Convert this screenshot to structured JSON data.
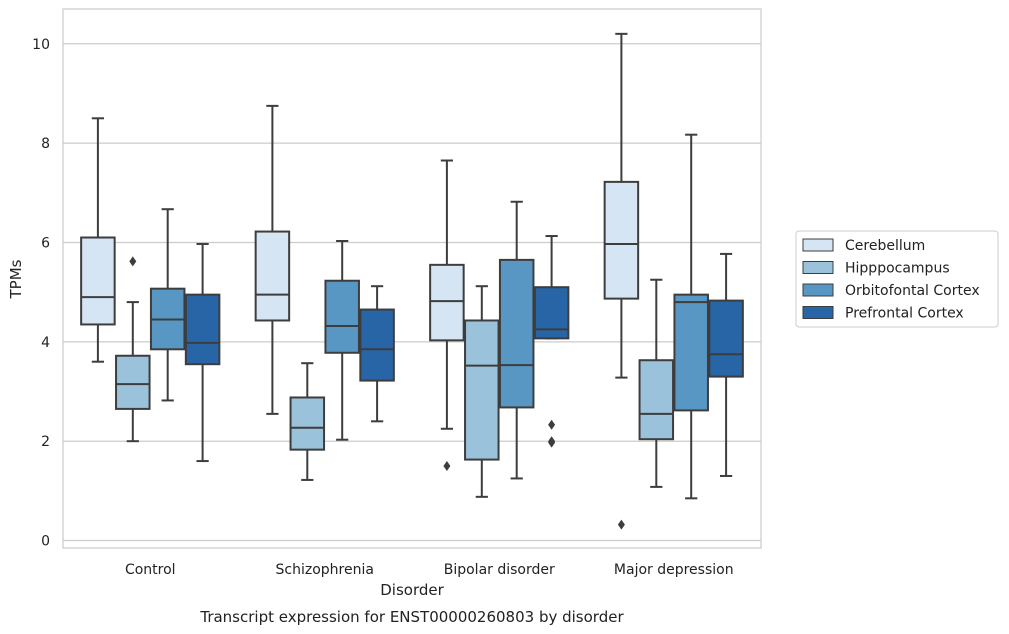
{
  "chart_data": {
    "type": "box",
    "title": "",
    "xlabel": "Disorder",
    "ylabel": "TPMs",
    "caption": "Transcript expression for ENST00000260803 by disorder",
    "categories": [
      "Control",
      "Schizophrenia",
      "Bipolar disorder",
      "Major depression"
    ],
    "yticks": [
      0,
      2,
      4,
      6,
      8,
      10
    ],
    "ylim": [
      -0.15,
      10.7
    ],
    "grid": "horizontal",
    "legend_position": "right",
    "series": [
      {
        "name": "Cerebellum",
        "color": "#d6e5f4",
        "boxes": [
          {
            "whislo": 3.6,
            "q1": 4.35,
            "med": 4.9,
            "q3": 6.1,
            "whishi": 8.5,
            "fliers": []
          },
          {
            "whislo": 2.55,
            "q1": 4.43,
            "med": 4.95,
            "q3": 6.22,
            "whishi": 8.75,
            "fliers": []
          },
          {
            "whislo": 2.25,
            "q1": 4.03,
            "med": 4.82,
            "q3": 5.55,
            "whishi": 7.65,
            "fliers": [
              1.5
            ]
          },
          {
            "whislo": 3.28,
            "q1": 4.87,
            "med": 5.97,
            "q3": 7.22,
            "whishi": 10.2,
            "fliers": [
              0.32
            ]
          }
        ]
      },
      {
        "name": "Hipppocampus",
        "color": "#9bc2db",
        "boxes": [
          {
            "whislo": 2.0,
            "q1": 2.65,
            "med": 3.15,
            "q3": 3.72,
            "whishi": 4.8,
            "fliers": [
              5.62
            ]
          },
          {
            "whislo": 1.22,
            "q1": 1.83,
            "med": 2.27,
            "q3": 2.88,
            "whishi": 3.57,
            "fliers": []
          },
          {
            "whislo": 0.88,
            "q1": 1.63,
            "med": 3.52,
            "q3": 4.43,
            "whishi": 5.12,
            "fliers": []
          },
          {
            "whislo": 1.08,
            "q1": 2.04,
            "med": 2.55,
            "q3": 3.63,
            "whishi": 5.25,
            "fliers": []
          }
        ]
      },
      {
        "name": "Orbitofontal Cortex",
        "color": "#5897c4",
        "boxes": [
          {
            "whislo": 2.82,
            "q1": 3.85,
            "med": 4.45,
            "q3": 5.07,
            "whishi": 6.67,
            "fliers": []
          },
          {
            "whislo": 2.03,
            "q1": 3.78,
            "med": 4.32,
            "q3": 5.23,
            "whishi": 6.03,
            "fliers": []
          },
          {
            "whislo": 1.25,
            "q1": 2.68,
            "med": 3.53,
            "q3": 5.65,
            "whishi": 6.82,
            "fliers": []
          },
          {
            "whislo": 0.85,
            "q1": 2.62,
            "med": 4.8,
            "q3": 4.95,
            "whishi": 8.17,
            "fliers": []
          }
        ]
      },
      {
        "name": "Prefrontal Cortex",
        "color": "#2765a7",
        "boxes": [
          {
            "whislo": 1.6,
            "q1": 3.55,
            "med": 3.98,
            "q3": 4.95,
            "whishi": 5.97,
            "fliers": []
          },
          {
            "whislo": 2.4,
            "q1": 3.22,
            "med": 3.85,
            "q3": 4.65,
            "whishi": 5.12,
            "fliers": []
          },
          {
            "whislo": 4.07,
            "q1": 4.07,
            "med": 4.25,
            "q3": 5.1,
            "whishi": 6.13,
            "fliers": [
              2.33,
              2.0,
              1.97
            ]
          },
          {
            "whislo": 1.3,
            "q1": 3.3,
            "med": 3.75,
            "q3": 4.83,
            "whishi": 5.77,
            "fliers": []
          }
        ]
      }
    ]
  }
}
